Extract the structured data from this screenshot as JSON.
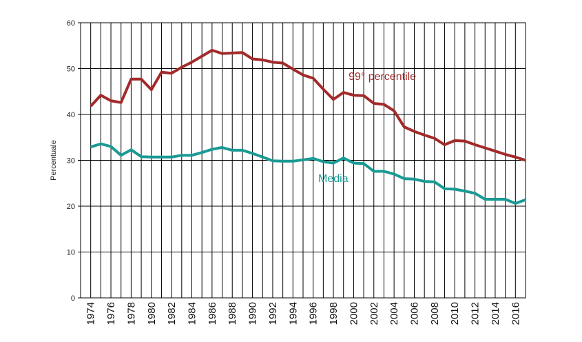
{
  "chart_data": {
    "type": "line",
    "title": "",
    "xlabel": "",
    "ylabel": "Percentuale",
    "ylim": [
      0,
      60
    ],
    "xlim": [
      1973,
      2017
    ],
    "grid": true,
    "yticks": [
      "0",
      "10",
      "20",
      "30",
      "40",
      "50",
      "60"
    ],
    "xticks": [
      "1974",
      "1976",
      "1978",
      "1980",
      "1982",
      "1984",
      "1986",
      "1988",
      "1990",
      "1992",
      "1994",
      "1996",
      "1998",
      "2000",
      "2002",
      "2004",
      "2006",
      "2008",
      "2010",
      "2012",
      "2014",
      "2016"
    ],
    "x": [
      1974,
      1975,
      1976,
      1977,
      1978,
      1979,
      1980,
      1981,
      1982,
      1983,
      1984,
      1985,
      1986,
      1987,
      1988,
      1989,
      1990,
      1991,
      1992,
      1993,
      1994,
      1995,
      1996,
      1997,
      1998,
      1999,
      2000,
      2001,
      2002,
      2003,
      2004,
      2005,
      2006,
      2007,
      2008,
      2009,
      2010,
      2011,
      2012,
      2013,
      2014,
      2015,
      2016,
      2017
    ],
    "series": [
      {
        "name": "99° percentile",
        "color": "#a32a2a",
        "values": [
          41.8,
          44.2,
          43.0,
          42.6,
          47.7,
          47.7,
          45.4,
          49.2,
          49.0,
          50.3,
          51.4,
          52.7,
          54.0,
          53.3,
          53.4,
          53.5,
          52.1,
          51.9,
          51.4,
          51.2,
          49.9,
          48.6,
          47.9,
          45.5,
          43.3,
          44.8,
          44.2,
          44.1,
          42.4,
          42.2,
          40.8,
          37.3,
          36.3,
          35.5,
          34.8,
          33.4,
          34.3,
          34.2,
          33.4,
          32.7,
          32.0,
          31.3,
          30.7,
          30.0
        ]
      },
      {
        "name": "Media",
        "color": "#1a9a94",
        "values": [
          32.9,
          33.6,
          33.0,
          31.1,
          32.3,
          30.8,
          30.7,
          30.7,
          30.7,
          31.1,
          31.1,
          31.7,
          32.4,
          32.8,
          32.2,
          32.2,
          31.5,
          30.7,
          29.9,
          29.8,
          29.8,
          30.1,
          30.4,
          29.7,
          29.4,
          30.5,
          29.4,
          29.3,
          27.6,
          27.6,
          27.0,
          26.0,
          25.9,
          25.4,
          25.3,
          23.8,
          23.7,
          23.3,
          22.8,
          21.5,
          21.5,
          21.5,
          20.6,
          21.4
        ]
      }
    ],
    "annotations": [
      {
        "text": "99° percentile",
        "x": 1999.5,
        "y": 47.5
      },
      {
        "text": "Media",
        "x": 1996.5,
        "y": 25.3
      }
    ]
  }
}
